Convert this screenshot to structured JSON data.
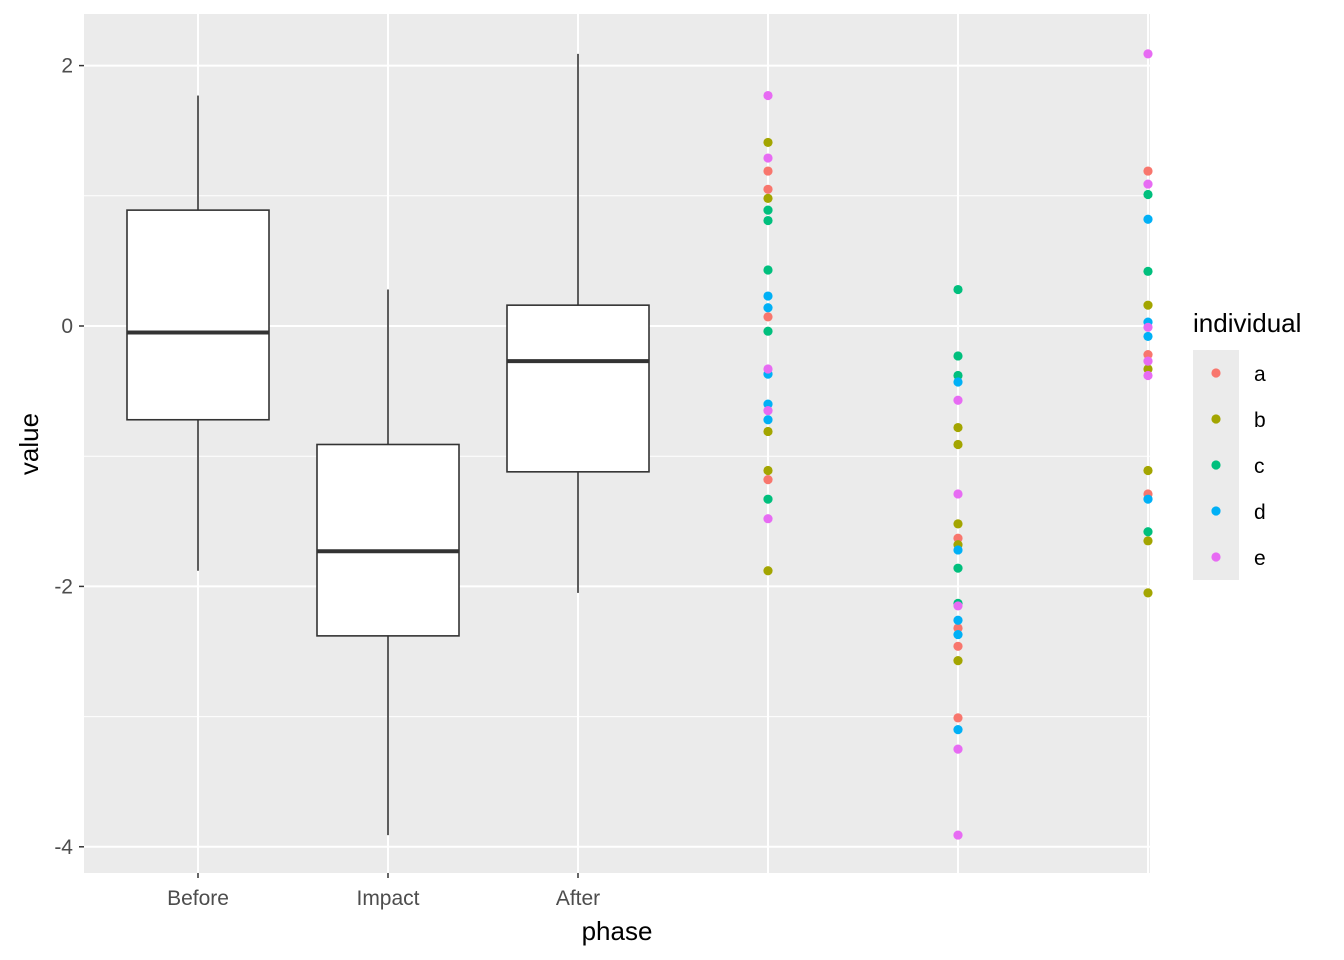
{
  "chart_data": {
    "type": "box+scatter",
    "xlabel": "phase",
    "ylabel": "value",
    "categories": [
      "Before",
      "Impact",
      "After"
    ],
    "ylim": [
      -4.2,
      2.4
    ],
    "yticks": [
      2,
      0,
      -2,
      -4
    ],
    "yticklabels": [
      "2",
      "0",
      "-2",
      "-4"
    ],
    "grid": true,
    "background": "#ebebeb",
    "boxplots": [
      {
        "category": "Before",
        "lower_whisker": -1.88,
        "q1": -0.72,
        "median": -0.05,
        "q3": 0.89,
        "upper_whisker": 1.77
      },
      {
        "category": "Impact",
        "lower_whisker": -3.91,
        "q1": -2.38,
        "median": -1.73,
        "q3": -0.91,
        "upper_whisker": 0.28
      },
      {
        "category": "After",
        "lower_whisker": -2.05,
        "q1": -1.12,
        "median": -0.27,
        "q3": 0.16,
        "upper_whisker": 2.09
      }
    ],
    "scatter_x_positions": [
      4,
      5,
      6
    ],
    "series": [
      {
        "name": "a",
        "color": "#f8766d",
        "points": [
          {
            "x": 4,
            "y": 1.19
          },
          {
            "x": 4,
            "y": 1.05
          },
          {
            "x": 4,
            "y": 0.07
          },
          {
            "x": 4,
            "y": -1.18
          },
          {
            "x": 5,
            "y": -1.63
          },
          {
            "x": 5,
            "y": -2.32
          },
          {
            "x": 5,
            "y": -2.46
          },
          {
            "x": 5,
            "y": -3.01
          },
          {
            "x": 6,
            "y": 1.19
          },
          {
            "x": 6,
            "y": -0.22
          },
          {
            "x": 6,
            "y": -1.29
          }
        ]
      },
      {
        "name": "b",
        "color": "#a3a500",
        "points": [
          {
            "x": 4,
            "y": 1.41
          },
          {
            "x": 4,
            "y": 0.98
          },
          {
            "x": 4,
            "y": -0.81
          },
          {
            "x": 4,
            "y": -1.11
          },
          {
            "x": 4,
            "y": -1.88
          },
          {
            "x": 5,
            "y": -0.78
          },
          {
            "x": 5,
            "y": -0.91
          },
          {
            "x": 5,
            "y": -1.52
          },
          {
            "x": 5,
            "y": -1.68
          },
          {
            "x": 5,
            "y": -2.57
          },
          {
            "x": 6,
            "y": 0.16
          },
          {
            "x": 6,
            "y": -0.33
          },
          {
            "x": 6,
            "y": -1.11
          },
          {
            "x": 6,
            "y": -1.65
          },
          {
            "x": 6,
            "y": -2.05
          }
        ]
      },
      {
        "name": "c",
        "color": "#00bf7d",
        "points": [
          {
            "x": 4,
            "y": 0.89
          },
          {
            "x": 4,
            "y": 0.81
          },
          {
            "x": 4,
            "y": 0.43
          },
          {
            "x": 4,
            "y": -0.04
          },
          {
            "x": 4,
            "y": -1.33
          },
          {
            "x": 5,
            "y": 0.28
          },
          {
            "x": 5,
            "y": -0.23
          },
          {
            "x": 5,
            "y": -0.38
          },
          {
            "x": 5,
            "y": -1.86
          },
          {
            "x": 5,
            "y": -2.13
          },
          {
            "x": 6,
            "y": 1.01
          },
          {
            "x": 6,
            "y": 0.42
          },
          {
            "x": 6,
            "y": -1.58
          }
        ]
      },
      {
        "name": "d",
        "color": "#00b0f6",
        "points": [
          {
            "x": 4,
            "y": 0.23
          },
          {
            "x": 4,
            "y": 0.14
          },
          {
            "x": 4,
            "y": -0.37
          },
          {
            "x": 4,
            "y": -0.6
          },
          {
            "x": 4,
            "y": -0.72
          },
          {
            "x": 5,
            "y": -0.43
          },
          {
            "x": 5,
            "y": -1.72
          },
          {
            "x": 5,
            "y": -2.26
          },
          {
            "x": 5,
            "y": -2.37
          },
          {
            "x": 5,
            "y": -3.1
          },
          {
            "x": 6,
            "y": 0.82
          },
          {
            "x": 6,
            "y": 0.03
          },
          {
            "x": 6,
            "y": -0.08
          },
          {
            "x": 6,
            "y": -1.33
          }
        ]
      },
      {
        "name": "e",
        "color": "#e76bf3",
        "points": [
          {
            "x": 4,
            "y": 1.77
          },
          {
            "x": 4,
            "y": 1.29
          },
          {
            "x": 4,
            "y": -0.33
          },
          {
            "x": 4,
            "y": -0.65
          },
          {
            "x": 4,
            "y": -1.48
          },
          {
            "x": 5,
            "y": -0.57
          },
          {
            "x": 5,
            "y": -1.29
          },
          {
            "x": 5,
            "y": -2.15
          },
          {
            "x": 5,
            "y": -3.25
          },
          {
            "x": 5,
            "y": -3.91
          },
          {
            "x": 6,
            "y": 2.09
          },
          {
            "x": 6,
            "y": 1.09
          },
          {
            "x": 6,
            "y": -0.01
          },
          {
            "x": 6,
            "y": -0.27
          },
          {
            "x": 6,
            "y": -0.38
          }
        ]
      }
    ],
    "legend": {
      "title": "individual",
      "position": "right",
      "entries": [
        "a",
        "b",
        "c",
        "d",
        "e"
      ]
    }
  }
}
